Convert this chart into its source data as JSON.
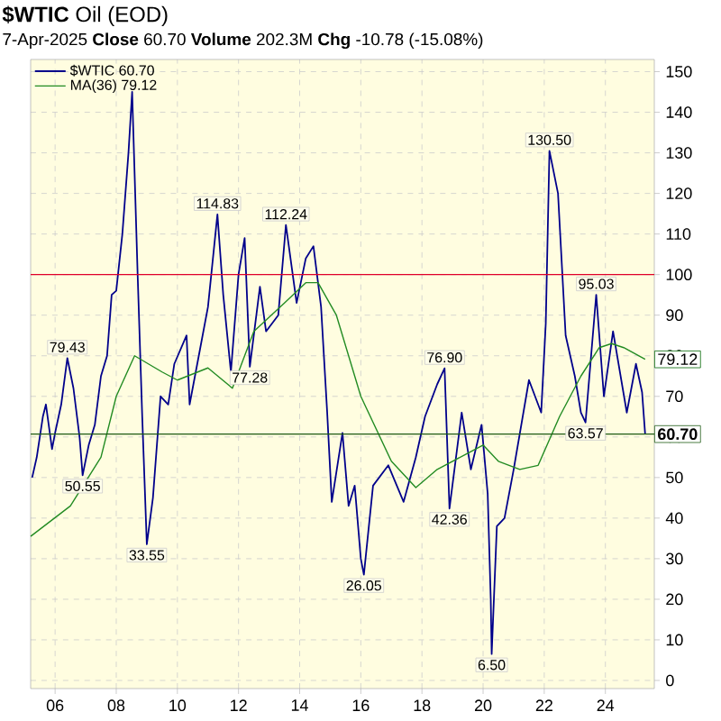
{
  "chart_data": {
    "type": "line",
    "title": "**$WTIC** Oil (EOD)",
    "subtitle": "7-Apr-2025      **Close** 60.70  **Volume** 202.3M  **Chg** -10.78 (-15.08%)",
    "xlim": [
      2005.2,
      2025.6
    ],
    "ylim": [
      -2,
      153
    ],
    "xticks": [
      {
        "value": 2006,
        "label": "06"
      },
      {
        "value": 2008,
        "label": "08"
      },
      {
        "value": 2010,
        "label": "10"
      },
      {
        "value": 2012,
        "label": "12"
      },
      {
        "value": 2014,
        "label": "14"
      },
      {
        "value": 2016,
        "label": "16"
      },
      {
        "value": 2018,
        "label": "18"
      },
      {
        "value": 2020,
        "label": "20"
      },
      {
        "value": 2022,
        "label": "22"
      },
      {
        "value": 2024,
        "label": "24"
      }
    ],
    "yticks": [
      0,
      10,
      20,
      30,
      40,
      50,
      60,
      70,
      80,
      90,
      100,
      110,
      120,
      130,
      140,
      150
    ],
    "grid": true,
    "legend": "top left",
    "series": [
      {
        "name": "$WTIC 60.70",
        "color": "#00008b",
        "x": [
          2005.25,
          2005.4,
          2005.6,
          2005.7,
          2005.9,
          2006.0,
          2006.2,
          2006.4,
          2006.6,
          2006.8,
          2006.9,
          2007.1,
          2007.3,
          2007.5,
          2007.7,
          2007.85,
          2008.0,
          2008.2,
          2008.4,
          2008.52,
          2008.7,
          2008.85,
          2009.0,
          2009.2,
          2009.45,
          2009.7,
          2009.9,
          2010.3,
          2010.4,
          2010.7,
          2011.0,
          2011.31,
          2011.5,
          2011.75,
          2012.0,
          2012.2,
          2012.37,
          2012.7,
          2012.9,
          2013.3,
          2013.55,
          2013.9,
          2014.2,
          2014.45,
          2014.7,
          2014.9,
          2015.05,
          2015.4,
          2015.6,
          2015.8,
          2016.0,
          2016.1,
          2016.4,
          2016.9,
          2017.4,
          2017.8,
          2018.1,
          2018.5,
          2018.74,
          2018.9,
          2019.3,
          2019.6,
          2019.95,
          2020.15,
          2020.25,
          2020.28,
          2020.45,
          2020.7,
          2021.0,
          2021.5,
          2021.9,
          2022.05,
          2022.17,
          2022.45,
          2022.7,
          2023.0,
          2023.2,
          2023.35,
          2023.7,
          2023.95,
          2024.25,
          2024.7,
          2025.0,
          2025.2,
          2025.3
        ],
        "values": [
          50,
          55,
          65,
          68,
          57,
          61,
          68,
          79.43,
          72,
          60,
          50.55,
          58,
          63,
          75,
          80,
          95,
          96,
          110,
          130,
          145,
          100,
          65,
          33.55,
          45,
          70,
          68,
          78,
          85,
          68,
          80,
          92,
          114.83,
          95,
          76,
          100,
          109,
          77.28,
          97,
          86,
          90,
          112.24,
          93,
          104,
          107,
          92,
          66,
          44,
          61,
          43,
          48,
          30,
          26.05,
          48,
          53,
          44,
          55,
          65,
          73,
          76.9,
          42.36,
          66,
          52,
          63,
          46,
          20,
          6.5,
          38,
          40,
          52,
          74,
          66,
          88,
          130.5,
          120,
          85,
          75,
          66,
          63.57,
          95.03,
          70,
          86,
          66,
          78,
          71,
          60.7
        ]
      },
      {
        "name": "MA(36) 79.12",
        "color": "#228b22",
        "x": [
          2005.2,
          2006.5,
          2007.5,
          2008.0,
          2008.6,
          2009.5,
          2010.0,
          2011.0,
          2011.8,
          2012.5,
          2013.5,
          2014.2,
          2014.6,
          2015.2,
          2016.0,
          2017.0,
          2017.8,
          2018.5,
          2019.5,
          2020.0,
          2020.5,
          2021.2,
          2021.8,
          2022.5,
          2023.2,
          2023.8,
          2024.2,
          2024.6,
          2025.3
        ],
        "values": [
          35.5,
          43,
          55,
          70,
          80,
          76,
          74,
          77,
          72,
          86,
          93,
          98,
          98,
          90,
          70,
          54,
          47.5,
          52,
          56,
          58,
          54,
          52,
          53,
          65,
          75,
          82,
          83,
          82,
          79.12
        ]
      }
    ],
    "ref_lines": [
      {
        "axis": "y",
        "value": 100,
        "color": "#e0002a"
      },
      {
        "axis": "y",
        "value": 60.7,
        "color": "#1e5a14",
        "label": "60.70"
      }
    ],
    "annotations": [
      {
        "text": "79.43",
        "x": 2006.4,
        "y": 79.43
      },
      {
        "text": "50.55",
        "x": 2006.9,
        "y": 50.55
      },
      {
        "text": "33.55",
        "x": 2009.0,
        "y": 33.55
      },
      {
        "text": "114.83",
        "x": 2011.31,
        "y": 114.83
      },
      {
        "text": "77.28",
        "x": 2012.37,
        "y": 77.28
      },
      {
        "text": "112.24",
        "x": 2013.55,
        "y": 112.24
      },
      {
        "text": "26.05",
        "x": 2016.1,
        "y": 26.05
      },
      {
        "text": "76.90",
        "x": 2018.74,
        "y": 76.9
      },
      {
        "text": "42.36",
        "x": 2018.9,
        "y": 42.36
      },
      {
        "text": "6.50",
        "x": 2020.28,
        "y": 6.5
      },
      {
        "text": "130.50",
        "x": 2022.17,
        "y": 130.5
      },
      {
        "text": "63.57",
        "x": 2023.35,
        "y": 63.57
      },
      {
        "text": "95.03",
        "x": 2023.7,
        "y": 95.03
      },
      {
        "text": "79.12",
        "x": 2025.3,
        "y": 79.12
      }
    ]
  }
}
